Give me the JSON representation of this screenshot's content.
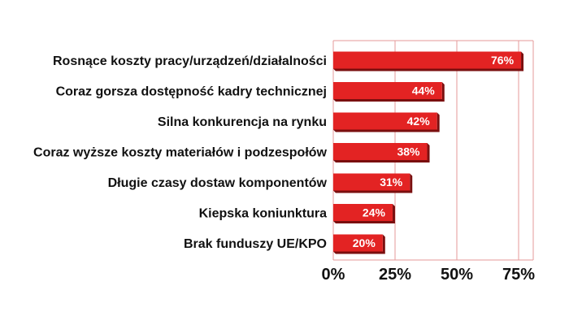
{
  "chart_data": {
    "type": "bar",
    "orientation": "horizontal",
    "categories": [
      "Rosnące koszty pracy/urządzeń/działalności",
      "Coraz gorsza dostępność kadry technicznej",
      "Silna konkurencja na rynku",
      "Coraz wyższe koszty materiałów i podzespołów",
      "Długie czasy dostaw komponentów",
      "Kiepska koniunktura",
      "Brak funduszy UE/KPO"
    ],
    "values": [
      76,
      44,
      42,
      38,
      31,
      24,
      20
    ],
    "data_labels": [
      "76%",
      "44%",
      "42%",
      "38%",
      "31%",
      "24%",
      "20%"
    ],
    "xlim": [
      0,
      80
    ],
    "x_ticks": [
      0,
      25,
      50,
      75
    ],
    "x_tick_labels": [
      "0%",
      "25%",
      "50%",
      "75%"
    ],
    "grid": true,
    "legend": "none",
    "colors": {
      "bar": "#e32323",
      "bar_shadow": "#7a0f0f",
      "grid": "#e69a9a",
      "text": "#111111",
      "data_label": "#ffffff"
    }
  }
}
